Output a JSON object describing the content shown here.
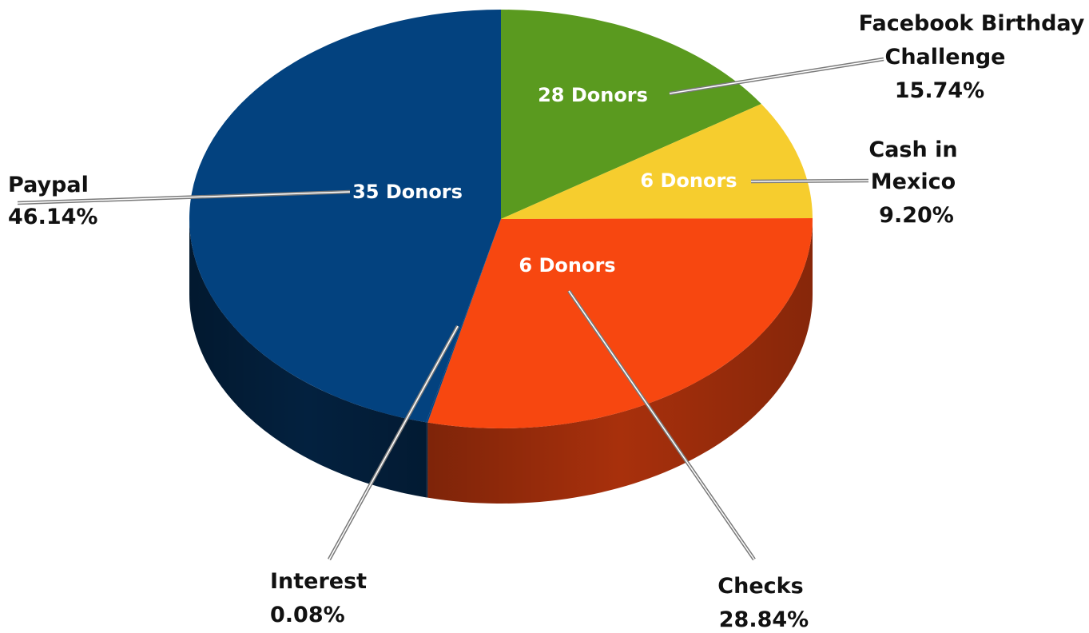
{
  "chart_data": {
    "type": "pie",
    "slices": [
      {
        "name": "Paypal",
        "percent_label": "46.14%",
        "value": 46.14,
        "donors_label": "35 Donors",
        "color": "#03427F",
        "side_color": "#03213F"
      },
      {
        "name": "Facebook Birthday Challenge",
        "percent_label": "15.74%",
        "value": 15.74,
        "donors_label": "28 Donors",
        "color": "#5A9A1F",
        "side_color": "#3D6C14"
      },
      {
        "name": "Cash in Mexico",
        "percent_label": "9.20%",
        "value": 9.2,
        "donors_label": "6 Donors",
        "color": "#F6CD2E",
        "side_color": "#C9A21B"
      },
      {
        "name": "Checks",
        "percent_label": "28.84%",
        "value": 28.84,
        "donors_label": "6 Donors",
        "color": "#F74710",
        "side_color": "#A8300C"
      },
      {
        "name": "Interest",
        "percent_label": "0.08%",
        "value": 0.08,
        "donors_label": "",
        "color": "#03427F",
        "side_color": "#03213F"
      }
    ],
    "labels": {
      "paypal": {
        "line1": "Paypal",
        "line2": "46.14%"
      },
      "facebook": {
        "line1": "Facebook Birthday",
        "line2": "Challenge",
        "line3": "15.74%"
      },
      "cash": {
        "line1": "Cash in",
        "line2": "Mexico",
        "line3": "9.20%"
      },
      "checks": {
        "line1": "Checks",
        "line2": "28.84%"
      },
      "interest": {
        "line1": "Interest",
        "line2": "0.08%"
      }
    },
    "donors": {
      "paypal": "35 Donors",
      "facebook": "28 Donors",
      "cash": "6 Donors",
      "checks": "6 Donors"
    }
  }
}
